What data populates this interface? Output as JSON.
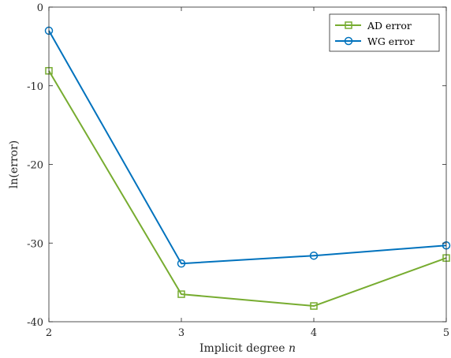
{
  "chart_data": {
    "type": "line",
    "xlabel": "Implicit degree",
    "xlabel_var": "n",
    "ylabel": "ln(error)",
    "x": [
      2,
      3,
      4,
      5
    ],
    "xlim": [
      2,
      5
    ],
    "ylim": [
      -40,
      0
    ],
    "xticks": [
      "2",
      "3",
      "4",
      "5"
    ],
    "yticks": [
      "0",
      "-10",
      "-20",
      "-30",
      "-40"
    ],
    "yticks_values": [
      0,
      -10,
      -20,
      -30,
      -40
    ],
    "grid": false,
    "legend_position": "top-right",
    "series": [
      {
        "name": "AD error",
        "values": [
          -8.1,
          -36.5,
          -38.0,
          -31.9
        ],
        "color": "#77ac30",
        "marker": "square"
      },
      {
        "name": "WG error",
        "values": [
          -3.0,
          -32.6,
          -31.6,
          -30.3
        ],
        "color": "#0072bd",
        "marker": "circle"
      }
    ]
  }
}
